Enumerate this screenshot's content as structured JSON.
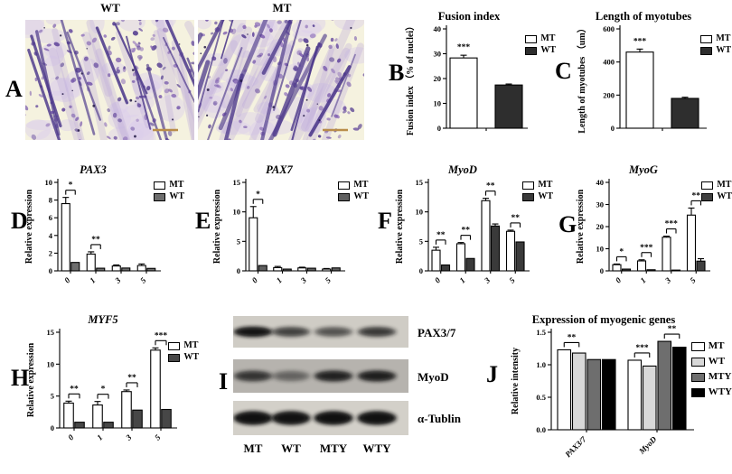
{
  "panels": {
    "A": {
      "letter": "A",
      "image_labels": [
        "WT",
        "MT"
      ]
    },
    "B": {
      "letter": "B"
    },
    "C": {
      "letter": "C"
    },
    "D": {
      "letter": "D"
    },
    "E": {
      "letter": "E"
    },
    "F": {
      "letter": "F"
    },
    "G": {
      "letter": "G"
    },
    "H": {
      "letter": "H"
    },
    "I": {
      "letter": "I",
      "blot": {
        "row_labels": [
          "PAX3/7",
          "MyoD",
          "α-Tublin"
        ],
        "lanes": [
          "MT",
          "WT",
          "MTY",
          "WTY"
        ],
        "band_intensity": [
          [
            0.92,
            0.55,
            0.45,
            0.6
          ],
          [
            0.6,
            0.32,
            0.75,
            0.78
          ],
          [
            0.97,
            0.95,
            0.97,
            0.96
          ]
        ]
      }
    },
    "J": {
      "letter": "J"
    }
  },
  "chart_data": [
    {
      "panel": "B",
      "type": "bar",
      "title": "Fusion index",
      "title_italic": false,
      "ylabel": "Fusion index （% of nuclei）",
      "xlabel": "",
      "categories": [
        ""
      ],
      "ylim": [
        0,
        40
      ],
      "yticks": [
        "0",
        "10",
        "20",
        "30",
        "40"
      ],
      "legend_position": "right",
      "series": [
        {
          "name": "MT",
          "color": "#ffffff",
          "values": [
            28.3
          ],
          "errors": [
            1.1
          ]
        },
        {
          "name": "WT",
          "color": "#2e2e2e",
          "values": [
            17.4
          ],
          "errors": [
            0.4
          ]
        }
      ],
      "sig": [
        {
          "cat": 0,
          "from": 0,
          "to": 0,
          "label": "***"
        }
      ]
    },
    {
      "panel": "C",
      "type": "bar",
      "title": "Length of myotubes",
      "title_italic": false,
      "ylabel": "Length of myotubes （um）",
      "xlabel": "",
      "categories": [
        ""
      ],
      "ylim": [
        0,
        600
      ],
      "yticks": [
        "0",
        "200",
        "400",
        "600"
      ],
      "legend_position": "right",
      "series": [
        {
          "name": "MT",
          "color": "#ffffff",
          "values": [
            460
          ],
          "errors": [
            18
          ]
        },
        {
          "name": "WT",
          "color": "#2e2e2e",
          "values": [
            180
          ],
          "errors": [
            7
          ]
        }
      ],
      "sig": [
        {
          "cat": 0,
          "from": 0,
          "to": 0,
          "label": "***"
        }
      ]
    },
    {
      "panel": "D",
      "type": "bar",
      "title": "PAX3",
      "title_italic": true,
      "ylabel": "Relative expression",
      "xlabel": "",
      "categories": [
        "0",
        "1",
        "3",
        "5"
      ],
      "ylim": [
        0,
        10
      ],
      "yticks": [
        "0",
        "2",
        "4",
        "6",
        "8",
        "10"
      ],
      "legend_position": "right",
      "series": [
        {
          "name": "MT",
          "color": "#ffffff",
          "values": [
            7.6,
            1.9,
            0.55,
            0.6
          ],
          "errors": [
            0.7,
            0.25,
            0.12,
            0.18
          ]
        },
        {
          "name": "WT",
          "color": "#6e6e6e",
          "values": [
            0.95,
            0.3,
            0.32,
            0.28
          ],
          "errors": [
            0,
            0,
            0,
            0
          ]
        }
      ],
      "sig": [
        {
          "cat": 0,
          "from": 0,
          "to": 1,
          "label": "*"
        },
        {
          "cat": 1,
          "from": 0,
          "to": 1,
          "label": "**"
        }
      ]
    },
    {
      "panel": "E",
      "type": "bar",
      "title": "PAX7",
      "title_italic": true,
      "ylabel": "Relative expression",
      "xlabel": "",
      "categories": [
        "0",
        "1",
        "3",
        "5"
      ],
      "ylim": [
        0,
        15
      ],
      "yticks": [
        "0",
        "5",
        "10",
        "15"
      ],
      "legend_position": "right",
      "series": [
        {
          "name": "MT",
          "color": "#ffffff",
          "values": [
            9.0,
            0.55,
            0.5,
            0.3
          ],
          "errors": [
            1.9,
            0.2,
            0.12,
            0.1
          ]
        },
        {
          "name": "WT",
          "color": "#5f5f5f",
          "values": [
            0.9,
            0.3,
            0.45,
            0.5
          ],
          "errors": [
            0,
            0,
            0,
            0
          ]
        }
      ],
      "sig": [
        {
          "cat": 0,
          "from": 0,
          "to": 1,
          "label": "*"
        }
      ]
    },
    {
      "panel": "F",
      "type": "bar",
      "title": "MyoD",
      "title_italic": true,
      "ylabel": "Relative expression",
      "xlabel": "",
      "categories": [
        "0",
        "1",
        "3",
        "5"
      ],
      "ylim": [
        0,
        15
      ],
      "yticks": [
        "0",
        "5",
        "10",
        "15"
      ],
      "legend_position": "right",
      "series": [
        {
          "name": "MT",
          "color": "#ffffff",
          "values": [
            3.5,
            4.6,
            11.9,
            6.7
          ],
          "errors": [
            0.5,
            0.2,
            0.4,
            0.2
          ]
        },
        {
          "name": "WT",
          "color": "#3a3a3a",
          "values": [
            1.0,
            2.1,
            7.6,
            4.9
          ],
          "errors": [
            0,
            0,
            0.35,
            0
          ]
        }
      ],
      "sig": [
        {
          "cat": 0,
          "from": 0,
          "to": 1,
          "label": "**"
        },
        {
          "cat": 1,
          "from": 0,
          "to": 1,
          "label": "**"
        },
        {
          "cat": 2,
          "from": 0,
          "to": 1,
          "label": "**"
        },
        {
          "cat": 3,
          "from": 0,
          "to": 1,
          "label": "**"
        }
      ]
    },
    {
      "panel": "G",
      "type": "bar",
      "title": "MyoG",
      "title_italic": true,
      "ylabel": "Relative expression",
      "xlabel": "",
      "categories": [
        "0",
        "1",
        "3",
        "5"
      ],
      "ylim": [
        0,
        40
      ],
      "yticks": [
        "0",
        "10",
        "20",
        "30",
        "40"
      ],
      "legend_position": "right",
      "series": [
        {
          "name": "MT",
          "color": "#ffffff",
          "values": [
            2.8,
            4.5,
            15.2,
            25.2
          ],
          "errors": [
            0.3,
            0.5,
            0.5,
            3.2
          ]
        },
        {
          "name": "WT",
          "color": "#404040",
          "values": [
            0.8,
            0.5,
            0.35,
            4.4
          ],
          "errors": [
            0,
            0,
            0,
            1.1
          ]
        }
      ],
      "sig": [
        {
          "cat": 0,
          "from": 0,
          "to": 1,
          "label": "*"
        },
        {
          "cat": 1,
          "from": 0,
          "to": 1,
          "label": "***"
        },
        {
          "cat": 2,
          "from": 0,
          "to": 1,
          "label": "***"
        },
        {
          "cat": 3,
          "from": 0,
          "to": 1,
          "label": "**"
        }
      ]
    },
    {
      "panel": "H",
      "type": "bar",
      "title": "MYF5",
      "title_italic": true,
      "ylabel": "Relative expression",
      "xlabel": "",
      "categories": [
        "0",
        "1",
        "3",
        "5"
      ],
      "ylim": [
        0,
        15
      ],
      "yticks": [
        "0",
        "5",
        "10",
        "15"
      ],
      "legend_position": "right",
      "series": [
        {
          "name": "MT",
          "color": "#ffffff",
          "values": [
            3.9,
            3.6,
            5.7,
            12.2
          ],
          "errors": [
            0.3,
            0.55,
            0.25,
            0.35
          ]
        },
        {
          "name": "WT",
          "color": "#474747",
          "values": [
            0.9,
            0.9,
            2.8,
            2.9
          ],
          "errors": [
            0,
            0,
            0,
            0
          ]
        }
      ],
      "sig": [
        {
          "cat": 0,
          "from": 0,
          "to": 1,
          "label": "**"
        },
        {
          "cat": 1,
          "from": 0,
          "to": 1,
          "label": "*"
        },
        {
          "cat": 2,
          "from": 0,
          "to": 1,
          "label": "**"
        },
        {
          "cat": 3,
          "from": 0,
          "to": 1,
          "label": "***"
        }
      ]
    },
    {
      "panel": "J",
      "type": "bar",
      "title": "Expression of myogenic genes",
      "title_italic": false,
      "ylabel": "Relative intensity",
      "xlabel": "",
      "categories": [
        "PAX3/7",
        "MyoD"
      ],
      "ylim": [
        0,
        1.5
      ],
      "yticks": [
        "0.0",
        "0.5",
        "1.0",
        "1.5"
      ],
      "legend_position": "right",
      "series": [
        {
          "name": "MT",
          "color": "#ffffff",
          "values": [
            1.23,
            1.07
          ]
        },
        {
          "name": "WT",
          "color": "#d8d8d8",
          "values": [
            1.18,
            0.98
          ]
        },
        {
          "name": "MTY",
          "color": "#6e6e6e",
          "values": [
            1.08,
            1.36
          ]
        },
        {
          "name": "WTY",
          "color": "#000000",
          "values": [
            1.08,
            1.27
          ]
        }
      ],
      "sig": [
        {
          "cat": 0,
          "from": 0,
          "to": 1,
          "label": "**"
        },
        {
          "cat": 1,
          "from": 0,
          "to": 1,
          "label": "***"
        },
        {
          "cat": 1,
          "from": 2,
          "to": 3,
          "label": "**"
        }
      ]
    }
  ]
}
